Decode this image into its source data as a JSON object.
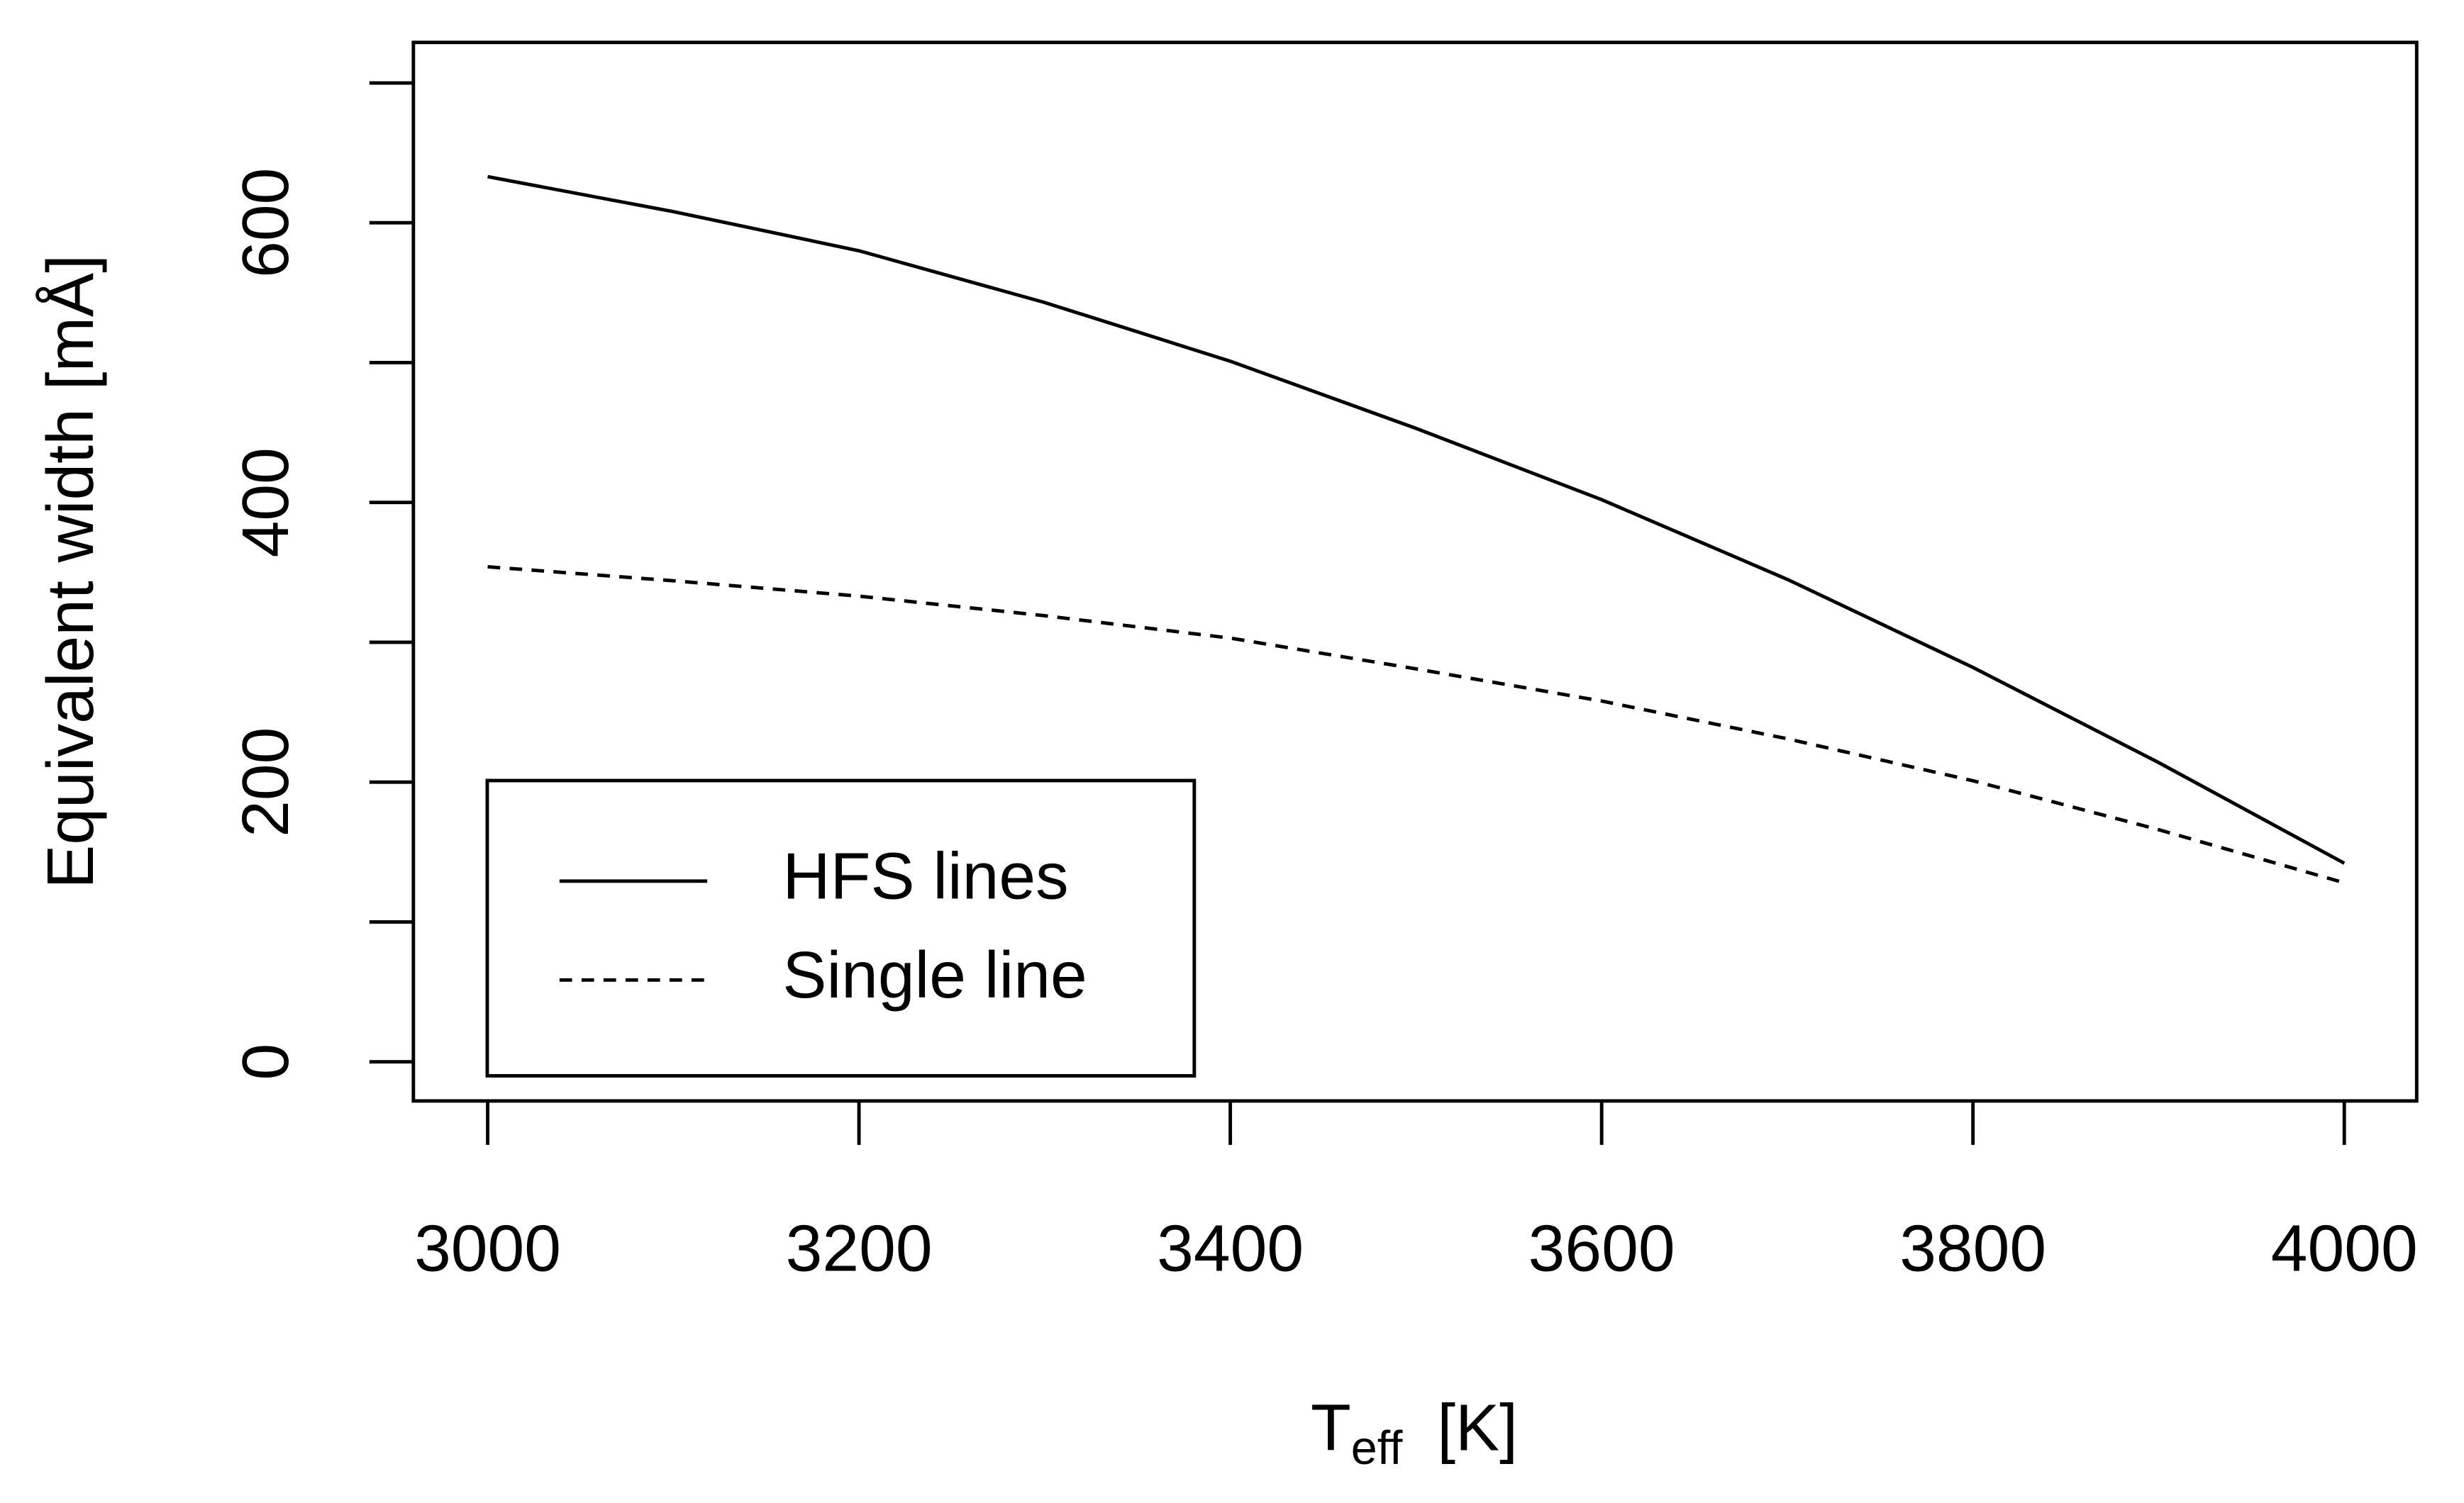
{
  "chart_data": {
    "type": "line",
    "ylabel": "Equivalent width [mÅ]",
    "xlabel": {
      "main": "T",
      "sub": "eff",
      "unit": "[K]"
    },
    "x": [
      3000,
      3100,
      3200,
      3300,
      3400,
      3500,
      3600,
      3700,
      3800,
      3900,
      4000
    ],
    "series": [
      {
        "name": "HFS lines",
        "color": "#000000",
        "dash": "solid",
        "values": [
          633,
          608,
          580,
          543,
          501,
          453,
          402,
          345,
          282,
          214,
          142
        ]
      },
      {
        "name": "Single line",
        "color": "#000000",
        "dash": "dashed",
        "values": [
          354,
          344,
          333,
          319,
          303,
          281,
          258,
          231,
          201,
          166,
          128
        ]
      }
    ],
    "xlim": [
      2960,
      4039
    ],
    "xticks": [
      3000,
      3200,
      3400,
      3600,
      3800,
      4000
    ],
    "ylim": [
      -28,
      729
    ],
    "yticks": [
      0,
      {
        "value": 100,
        "label": null
      },
      200,
      {
        "value": 300,
        "label": null
      },
      400,
      {
        "value": 500,
        "label": null
      },
      600,
      {
        "value": 700,
        "label": null
      }
    ],
    "legend": "bottom-left",
    "grid": false
  }
}
